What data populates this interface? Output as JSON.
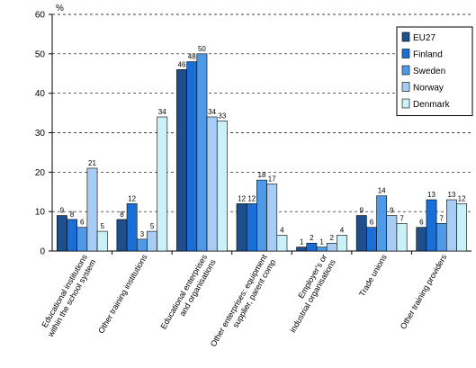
{
  "chart_data": {
    "type": "bar",
    "ylabel": "%",
    "ylim": [
      0,
      60
    ],
    "yticks": [
      0,
      10,
      20,
      30,
      40,
      50,
      60
    ],
    "grid": "horizontal dashed",
    "legend_position": "top-right",
    "categories": [
      [
        "Educational institutions",
        "within the school system"
      ],
      [
        "Other training institutions"
      ],
      [
        "Educational enterprises",
        "and organisations"
      ],
      [
        "Other enterprises: equipment",
        "supplier, parent comp"
      ],
      [
        "Employer's or",
        "industrial organisations"
      ],
      [
        "Trade unions"
      ],
      [
        "Other training providers"
      ]
    ],
    "series": [
      {
        "name": "EU27",
        "color": "#1f4e8c",
        "values": [
          9,
          8,
          46,
          12,
          1,
          9,
          6
        ]
      },
      {
        "name": "Finland",
        "color": "#1a6fd6",
        "values": [
          8,
          12,
          48,
          12,
          2,
          6,
          13
        ]
      },
      {
        "name": "Sweden",
        "color": "#4f9ae8",
        "values": [
          6,
          3,
          50,
          18,
          1,
          14,
          7
        ]
      },
      {
        "name": "Norway",
        "color": "#a8cdf5",
        "values": [
          21,
          5,
          34,
          17,
          2,
          9,
          13
        ]
      },
      {
        "name": "Denmark",
        "color": "#c9f1f7",
        "values": [
          5,
          34,
          33,
          4,
          4,
          7,
          12
        ]
      }
    ]
  }
}
